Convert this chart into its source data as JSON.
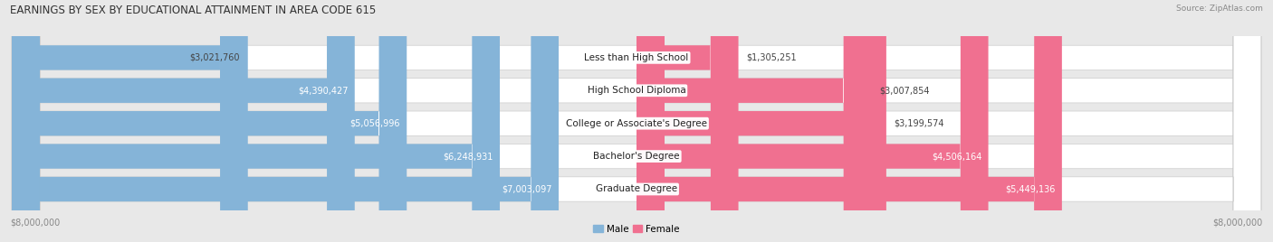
{
  "title": "EARNINGS BY SEX BY EDUCATIONAL ATTAINMENT IN AREA CODE 615",
  "source": "Source: ZipAtlas.com",
  "categories": [
    "Less than High School",
    "High School Diploma",
    "College or Associate's Degree",
    "Bachelor's Degree",
    "Graduate Degree"
  ],
  "male_values": [
    3021760,
    4390427,
    5056996,
    6248931,
    7003097
  ],
  "female_values": [
    1305251,
    3007854,
    3199574,
    4506164,
    5449136
  ],
  "male_labels": [
    "$3,021,760",
    "$4,390,427",
    "$5,056,996",
    "$6,248,931",
    "$7,003,097"
  ],
  "female_labels": [
    "$1,305,251",
    "$3,007,854",
    "$3,199,574",
    "$4,506,164",
    "$5,449,136"
  ],
  "male_color": "#85b4d8",
  "female_color": "#f07090",
  "max_value": 8000000,
  "x_label_left": "$8,000,000",
  "x_label_right": "$8,000,000",
  "background_color": "#e8e8e8",
  "bar_bg_color": "#ffffff",
  "title_fontsize": 8.5,
  "source_fontsize": 6.5,
  "label_fontsize": 7.5,
  "value_fontsize": 7.0,
  "axis_label_fontsize": 7.0,
  "legend_fontsize": 7.5
}
